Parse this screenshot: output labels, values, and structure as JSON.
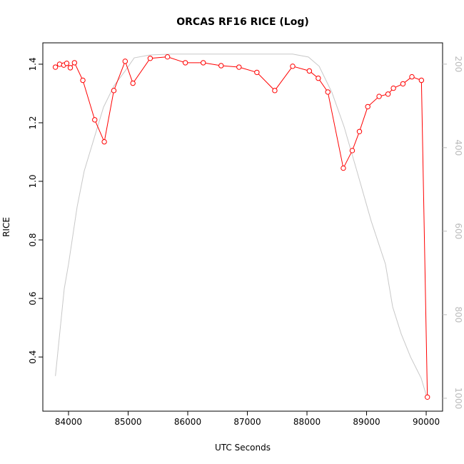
{
  "chart_data": {
    "type": "line",
    "title": "ORCAS RF16 RICE (Log)",
    "xlabel": "UTC Seconds",
    "ylabel": "RICE",
    "xlim": [
      83569,
      90275
    ],
    "ylim": [
      0.215,
      1.473
    ],
    "y2lim": [
      1031,
      149
    ],
    "xticks": [
      84000,
      85000,
      86000,
      87000,
      88000,
      89000,
      90000
    ],
    "yticks": [
      0.4,
      0.6,
      0.8,
      1.0,
      1.2,
      1.4
    ],
    "ytick_labels": [
      "0.4",
      "0.6",
      "0.8",
      "1.0",
      "1.2",
      "1.4"
    ],
    "y2ticks": [
      200,
      400,
      600,
      800,
      1000
    ],
    "grid": false,
    "series": [
      {
        "color": "#ff0000",
        "axis": "left",
        "markers": "open-circle",
        "x": [
          83780,
          83850,
          83920,
          83970,
          84030,
          84100,
          84240,
          84440,
          84600,
          84760,
          84950,
          85080,
          85370,
          85660,
          85960,
          86260,
          86560,
          86860,
          87160,
          87460,
          87760,
          88040,
          88190,
          88350,
          88610,
          88760,
          88880,
          89020,
          89210,
          89360,
          89450,
          89610,
          89760,
          89920,
          90020
        ],
        "y": [
          1.39,
          1.4,
          1.397,
          1.403,
          1.388,
          1.405,
          1.345,
          1.21,
          1.135,
          1.31,
          1.41,
          1.335,
          1.42,
          1.425,
          1.405,
          1.405,
          1.395,
          1.39,
          1.372,
          1.31,
          1.393,
          1.377,
          1.352,
          1.305,
          1.045,
          1.105,
          1.17,
          1.255,
          1.29,
          1.298,
          1.318,
          1.333,
          1.357,
          1.345,
          0.263
        ]
      },
      {
        "color": "#c8c8c8",
        "axis": "right",
        "markers": "none",
        "x": [
          83780,
          83928,
          84000,
          84144,
          84263,
          84407,
          84587,
          84766,
          84946,
          85102,
          85365,
          85725,
          87760,
          88024,
          88204,
          88419,
          88623,
          88838,
          89078,
          89317,
          89437,
          89581,
          89737,
          89916,
          90012
        ],
        "y": [
          947,
          738,
          679,
          542,
          456,
          388,
          303,
          251,
          217,
          185,
          178,
          176,
          176,
          183,
          205,
          268,
          350,
          456,
          576,
          679,
          781,
          846,
          901,
          952,
          998
        ]
      }
    ]
  }
}
